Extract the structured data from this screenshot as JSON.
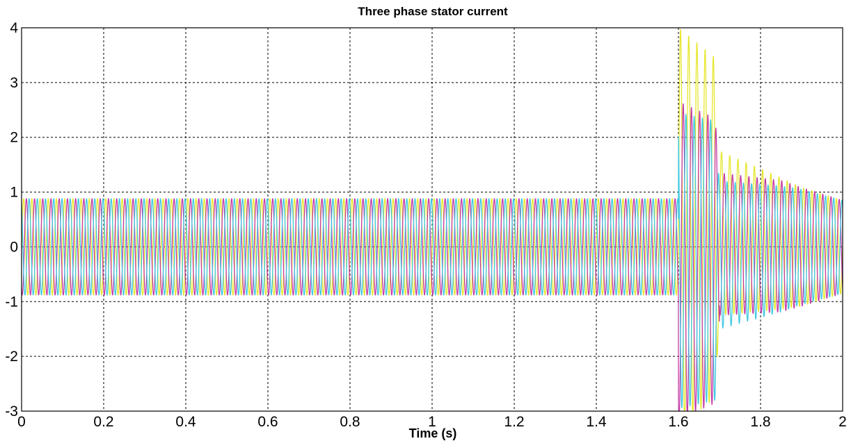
{
  "chart_data": {
    "type": "line",
    "title": "Three phase stator current",
    "xlabel": "Time (s)",
    "ylabel": "",
    "xlim": [
      0,
      2
    ],
    "ylim": [
      -3,
      4
    ],
    "grid": true,
    "x_ticks": [
      "0",
      "0.2",
      "0.4",
      "0.6",
      "0.8",
      "1",
      "1.2",
      "1.4",
      "1.6",
      "1.8",
      "2"
    ],
    "y_ticks": [
      "-3",
      "-2",
      "-1",
      "0",
      "1",
      "2",
      "3",
      "4"
    ],
    "frequency_hz": 50,
    "series": [
      {
        "color": "#e6e62e",
        "phase_deg": 0,
        "envelope": [
          [
            0,
            0.88
          ],
          [
            1.6,
            0.88
          ],
          [
            1.6,
            3.65
          ],
          [
            1.69,
            3.1
          ],
          [
            1.7,
            1.5
          ],
          [
            1.85,
            1.2
          ],
          [
            2.0,
            0.85
          ]
        ]
      },
      {
        "color": "#c43aa6",
        "phase_deg": -120,
        "envelope": [
          [
            0,
            0.88
          ],
          [
            1.6,
            0.88
          ],
          [
            1.6,
            2.9
          ],
          [
            1.69,
            2.6
          ],
          [
            1.7,
            1.3
          ],
          [
            1.85,
            1.2
          ],
          [
            2.0,
            0.85
          ]
        ]
      },
      {
        "color": "#3ec8e0",
        "phase_deg": 120,
        "envelope": [
          [
            0,
            0.88
          ],
          [
            1.6,
            0.88
          ],
          [
            1.6,
            2.7
          ],
          [
            1.69,
            2.55
          ],
          [
            1.7,
            1.35
          ],
          [
            1.85,
            1.15
          ],
          [
            2.0,
            0.85
          ]
        ]
      }
    ]
  }
}
